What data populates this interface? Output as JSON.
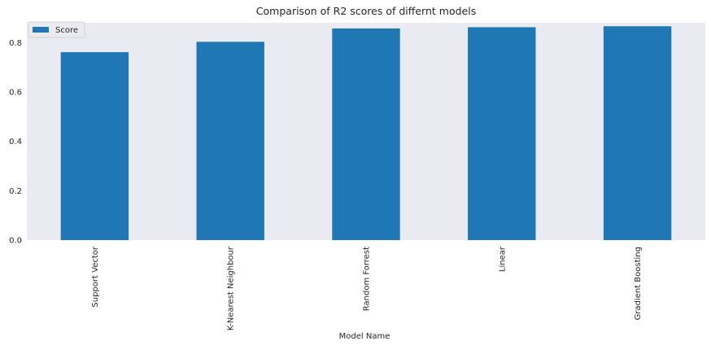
{
  "chart_data": {
    "type": "bar",
    "title": "Comparison of R2 scores of differnt models",
    "xlabel": "Model Name",
    "ylabel": "",
    "categories": [
      "Support Vector",
      "K-Nearest Neighbour",
      "Random Forrest",
      "Linear",
      "Gradient Boosting"
    ],
    "series": [
      {
        "name": "Score",
        "values": [
          0.761,
          0.803,
          0.857,
          0.862,
          0.866
        ]
      }
    ],
    "ylim": [
      0,
      0.88
    ],
    "yticks": [
      "0.0",
      "0.2",
      "0.4",
      "0.6",
      "0.8"
    ],
    "grid": false,
    "legend": "top-left",
    "colors": {
      "bar": "#1f77b4",
      "plot_background": "#eaeaf2"
    }
  }
}
